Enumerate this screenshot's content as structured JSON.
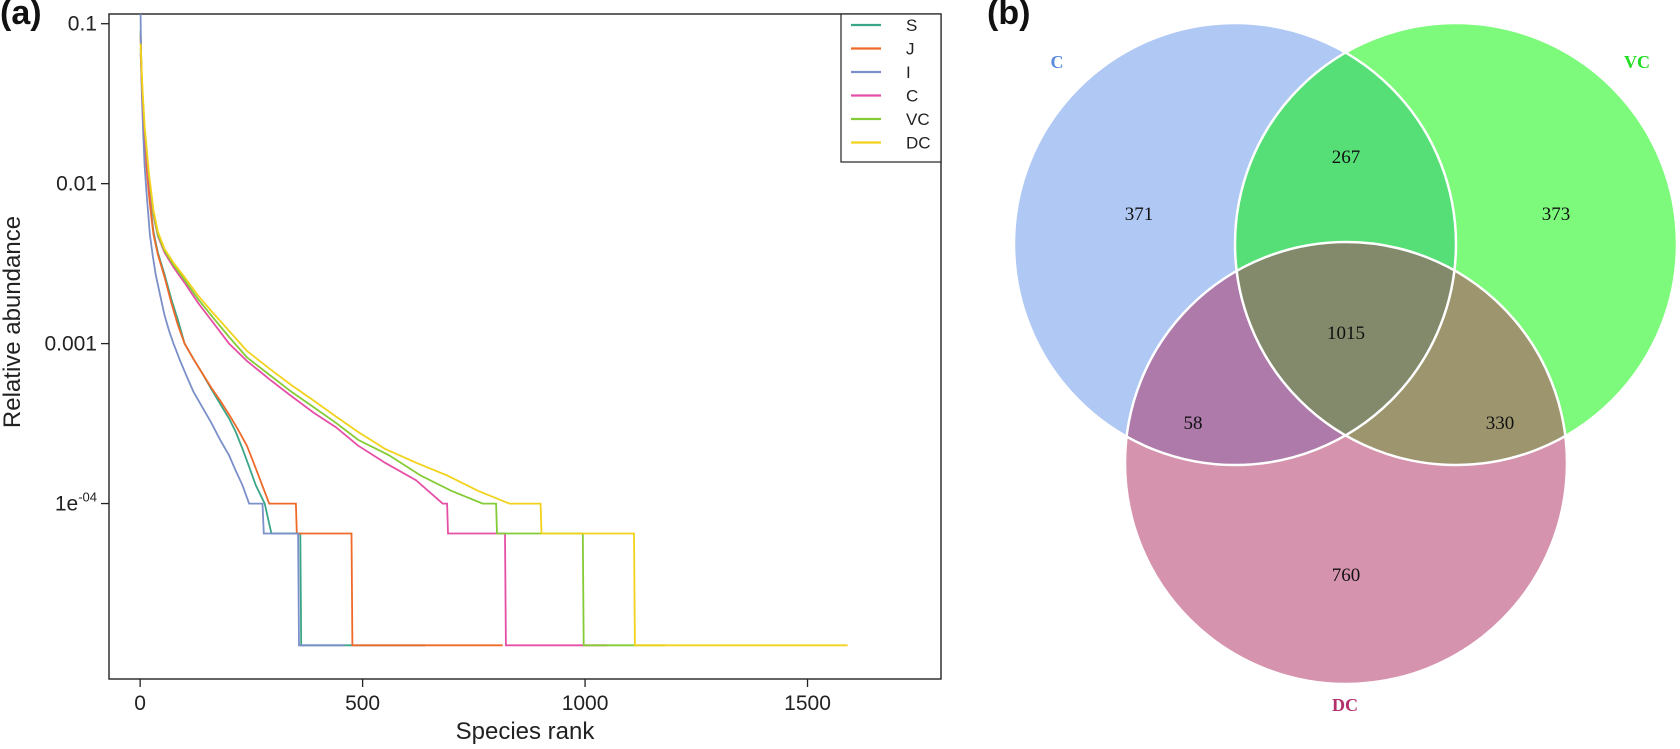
{
  "panels": {
    "a": "(a)",
    "b": "(b)"
  },
  "chart_data": [
    {
      "type": "line",
      "xlabel": "Species rank",
      "ylabel": "Relative abundance",
      "x_ticks": [
        {
          "value": 0,
          "label": "0"
        },
        {
          "value": 500,
          "label": "500"
        },
        {
          "value": 1000,
          "label": "1000"
        },
        {
          "value": 1500,
          "label": "1500"
        }
      ],
      "y_ticks": [
        {
          "value": 0.1,
          "label": "0.1"
        },
        {
          "value": 0.01,
          "label": "0.01"
        },
        {
          "value": 0.001,
          "label": "0.001"
        },
        {
          "value": 0.0001,
          "label": "1e",
          "sup": "-04"
        }
      ],
      "xlim": [
        -70,
        1800
      ],
      "ylim": [
        8e-06,
        0.115
      ],
      "y_scale": "log",
      "grid": false,
      "legend": "top-right",
      "series": [
        {
          "name": "S",
          "color": "#3aa587",
          "points": [
            [
              1,
              0.09
            ],
            [
              3,
              0.05
            ],
            [
              6,
              0.03
            ],
            [
              10,
              0.02
            ],
            [
              15,
              0.013
            ],
            [
              20,
              0.009
            ],
            [
              25,
              0.0065
            ],
            [
              30,
              0.005
            ],
            [
              40,
              0.0037
            ],
            [
              55,
              0.0027
            ],
            [
              70,
              0.0019
            ],
            [
              85,
              0.0014
            ],
            [
              100,
              0.001
            ],
            [
              120,
              0.0008
            ],
            [
              140,
              0.00065
            ],
            [
              160,
              0.00052
            ],
            [
              180,
              0.00042
            ],
            [
              200,
              0.00034
            ],
            [
              215,
              0.00028
            ],
            [
              230,
              0.00022
            ],
            [
              245,
              0.00017
            ],
            [
              260,
              0.00013
            ],
            [
              280,
              0.0001
            ],
            [
              295,
              6.5e-05
            ],
            [
              360,
              6.5e-05
            ],
            [
              362,
              1.3e-05
            ],
            [
              640,
              1.3e-05
            ]
          ]
        },
        {
          "name": "J",
          "color": "#ef6a2a",
          "points": [
            [
              1,
              0.085
            ],
            [
              3,
              0.05
            ],
            [
              6,
              0.03
            ],
            [
              10,
              0.019
            ],
            [
              15,
              0.012
            ],
            [
              20,
              0.0085
            ],
            [
              25,
              0.0062
            ],
            [
              30,
              0.0048
            ],
            [
              40,
              0.0036
            ],
            [
              55,
              0.0026
            ],
            [
              70,
              0.0018
            ],
            [
              85,
              0.0013
            ],
            [
              100,
              0.001
            ],
            [
              120,
              0.0008
            ],
            [
              140,
              0.00065
            ],
            [
              160,
              0.00053
            ],
            [
              180,
              0.00044
            ],
            [
              200,
              0.00036
            ],
            [
              220,
              0.00029
            ],
            [
              240,
              0.00023
            ],
            [
              255,
              0.00018
            ],
            [
              270,
              0.00014
            ],
            [
              290,
              0.0001
            ],
            [
              350,
              0.0001
            ],
            [
              352,
              6.5e-05
            ],
            [
              475,
              6.5e-05
            ],
            [
              477,
              1.3e-05
            ],
            [
              815,
              1.3e-05
            ]
          ]
        },
        {
          "name": "I",
          "color": "#7b90c8",
          "points": [
            [
              1,
              0.115
            ],
            [
              2,
              0.06
            ],
            [
              4,
              0.035
            ],
            [
              7,
              0.02
            ],
            [
              10,
              0.013
            ],
            [
              14,
              0.009
            ],
            [
              18,
              0.0065
            ],
            [
              22,
              0.0048
            ],
            [
              28,
              0.0036
            ],
            [
              35,
              0.0027
            ],
            [
              45,
              0.002
            ],
            [
              55,
              0.0015
            ],
            [
              65,
              0.0012
            ],
            [
              75,
              0.001
            ],
            [
              90,
              0.00078
            ],
            [
              105,
              0.00062
            ],
            [
              120,
              0.0005
            ],
            [
              140,
              0.0004
            ],
            [
              160,
              0.00032
            ],
            [
              180,
              0.00025
            ],
            [
              200,
              0.0002
            ],
            [
              215,
              0.00016
            ],
            [
              230,
              0.00013
            ],
            [
              245,
              0.0001
            ],
            [
              275,
              0.0001
            ],
            [
              278,
              6.5e-05
            ],
            [
              355,
              6.5e-05
            ],
            [
              357,
              1.3e-05
            ],
            [
              460,
              1.3e-05
            ]
          ]
        },
        {
          "name": "C",
          "color": "#e64fa6",
          "points": [
            [
              1,
              0.065
            ],
            [
              5,
              0.035
            ],
            [
              10,
              0.02
            ],
            [
              20,
              0.01
            ],
            [
              30,
              0.0063
            ],
            [
              40,
              0.0047
            ],
            [
              55,
              0.0037
            ],
            [
              75,
              0.003
            ],
            [
              100,
              0.0024
            ],
            [
              130,
              0.0018
            ],
            [
              160,
              0.0014
            ],
            [
              200,
              0.001
            ],
            [
              240,
              0.00078
            ],
            [
              290,
              0.0006
            ],
            [
              340,
              0.00047
            ],
            [
              390,
              0.00037
            ],
            [
              440,
              0.0003
            ],
            [
              490,
              0.00023
            ],
            [
              550,
              0.00018
            ],
            [
              620,
              0.00014
            ],
            [
              680,
              0.0001
            ],
            [
              690,
              0.0001
            ],
            [
              692,
              6.5e-05
            ],
            [
              820,
              6.5e-05
            ],
            [
              822,
              1.3e-05
            ],
            [
              1050,
              1.3e-05
            ]
          ]
        },
        {
          "name": "VC",
          "color": "#84cc35",
          "points": [
            [
              1,
              0.07
            ],
            [
              5,
              0.038
            ],
            [
              10,
              0.022
            ],
            [
              20,
              0.011
            ],
            [
              30,
              0.0065
            ],
            [
              40,
              0.0048
            ],
            [
              55,
              0.0038
            ],
            [
              75,
              0.0031
            ],
            [
              100,
              0.0025
            ],
            [
              130,
              0.0019
            ],
            [
              160,
              0.0015
            ],
            [
              200,
              0.0011
            ],
            [
              240,
              0.00082
            ],
            [
              290,
              0.00064
            ],
            [
              340,
              0.0005
            ],
            [
              390,
              0.0004
            ],
            [
              440,
              0.00032
            ],
            [
              490,
              0.00025
            ],
            [
              560,
              0.0002
            ],
            [
              630,
              0.00015
            ],
            [
              700,
              0.00012
            ],
            [
              770,
              0.0001
            ],
            [
              800,
              0.0001
            ],
            [
              802,
              6.5e-05
            ],
            [
              995,
              6.5e-05
            ],
            [
              997,
              1.3e-05
            ],
            [
              1180,
              1.3e-05
            ]
          ]
        },
        {
          "name": "DC",
          "color": "#f2d21b",
          "points": [
            [
              1,
              0.075
            ],
            [
              5,
              0.04
            ],
            [
              10,
              0.023
            ],
            [
              20,
              0.0115
            ],
            [
              30,
              0.0068
            ],
            [
              40,
              0.005
            ],
            [
              55,
              0.0039
            ],
            [
              75,
              0.0032
            ],
            [
              100,
              0.0026
            ],
            [
              130,
              0.002
            ],
            [
              160,
              0.0016
            ],
            [
              200,
              0.0012
            ],
            [
              240,
              0.0009
            ],
            [
              290,
              0.0007
            ],
            [
              340,
              0.00055
            ],
            [
              390,
              0.00044
            ],
            [
              440,
              0.00035
            ],
            [
              490,
              0.00028
            ],
            [
              550,
              0.00022
            ],
            [
              620,
              0.00018
            ],
            [
              690,
              0.00015
            ],
            [
              760,
              0.00012
            ],
            [
              830,
              0.0001
            ],
            [
              900,
              0.0001
            ],
            [
              902,
              6.5e-05
            ],
            [
              1110,
              6.5e-05
            ],
            [
              1112,
              1.3e-05
            ],
            [
              1590,
              1.3e-05
            ]
          ]
        }
      ]
    },
    {
      "type": "venn",
      "sets": [
        {
          "name": "C",
          "color": "#5b8be0"
        },
        {
          "name": "VC",
          "color": "#22dd22"
        },
        {
          "name": "DC",
          "color": "#b3316a"
        }
      ],
      "regions": [
        {
          "sets": [
            "C"
          ],
          "value": "371"
        },
        {
          "sets": [
            "C",
            "VC"
          ],
          "value": "267"
        },
        {
          "sets": [
            "VC"
          ],
          "value": "373"
        },
        {
          "sets": [
            "C",
            "VC",
            "DC"
          ],
          "value": "1015"
        },
        {
          "sets": [
            "C",
            "DC"
          ],
          "value": "58"
        },
        {
          "sets": [
            "VC",
            "DC"
          ],
          "value": "330"
        },
        {
          "sets": [
            "DC"
          ],
          "value": "760"
        }
      ],
      "fill_colors": {
        "C": "#afc8f4",
        "VC": "#7dfa7b",
        "DC": "#d693ad",
        "C_VC": "#56df77",
        "C_DC": "#ad7aaa",
        "VC_DC": "#9c956e",
        "C_VC_DC": "#838a6c"
      }
    }
  ]
}
